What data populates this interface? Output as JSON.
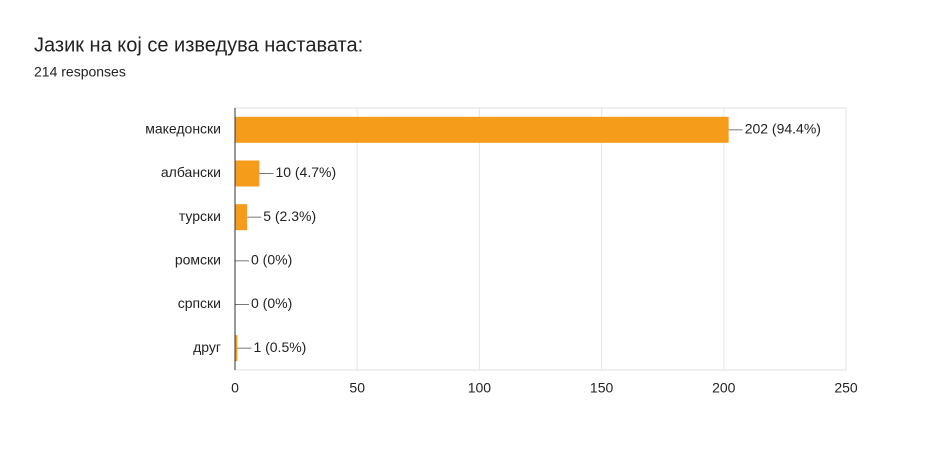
{
  "chart_data": {
    "type": "bar",
    "orientation": "horizontal",
    "title": "Јазик на кој се изведува наставата:",
    "subtitle": "214 responses",
    "categories": [
      "македонски",
      "албански",
      "турски",
      "ромски",
      "српски",
      "друг"
    ],
    "values": [
      202,
      10,
      5,
      0,
      0,
      1
    ],
    "value_labels": [
      "202 (94.4%)",
      "10 (4.7%)",
      "5 (2.3%)",
      "0 (0%)",
      "0 (0%)",
      "1 (0.5%)"
    ],
    "color": "#f59d1b",
    "xlim": [
      0,
      250
    ],
    "xticks": [
      0,
      50,
      100,
      150,
      200,
      250
    ],
    "grid": true
  }
}
